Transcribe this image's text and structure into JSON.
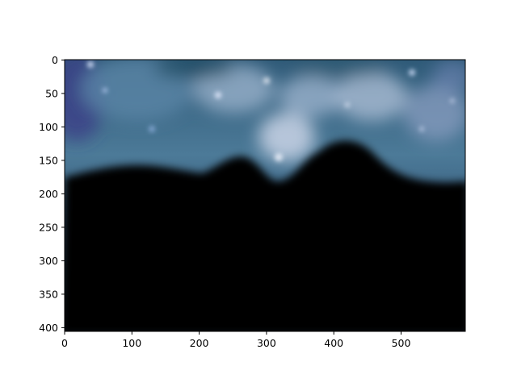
{
  "image": {
    "width": 595,
    "height": 406
  },
  "axes": {
    "x_ticks": [
      "0",
      "100",
      "200",
      "300",
      "400",
      "500"
    ],
    "y_ticks": [
      "0",
      "50",
      "100",
      "150",
      "200",
      "250",
      "300",
      "350",
      "400"
    ]
  }
}
